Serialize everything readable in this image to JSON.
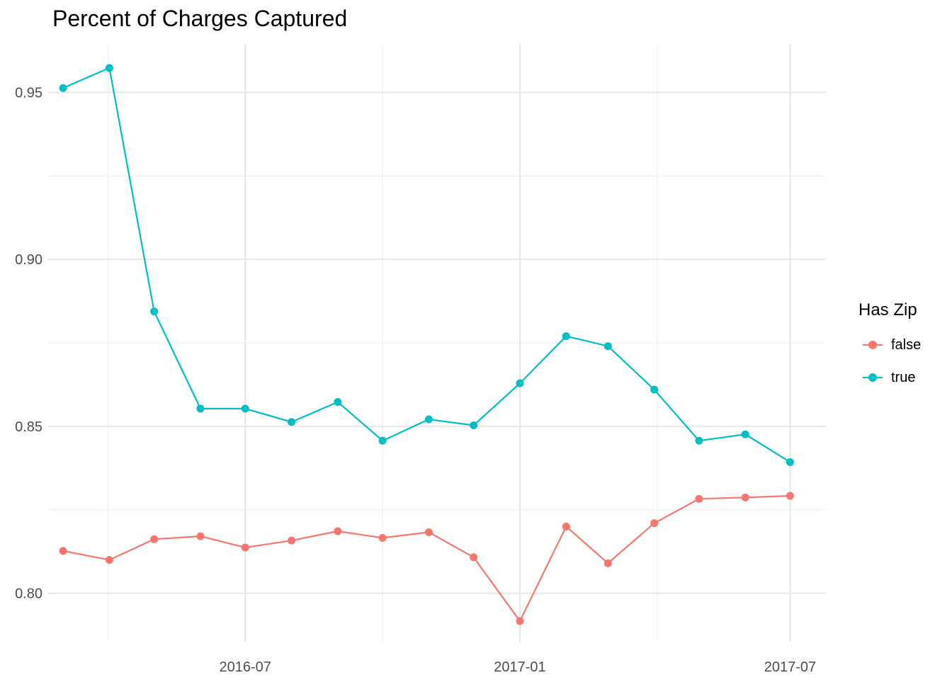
{
  "chart_data": {
    "type": "line",
    "title": "Percent of Charges Captured",
    "xlabel": "",
    "ylabel": "",
    "x": [
      "2016-03",
      "2016-04",
      "2016-05",
      "2016-06",
      "2016-07",
      "2016-08",
      "2016-09",
      "2016-10",
      "2016-11",
      "2016-12",
      "2017-01",
      "2017-02",
      "2017-03",
      "2017-04",
      "2017-05",
      "2017-06",
      "2017-07"
    ],
    "x_ticks": [
      "2016-07",
      "2017-01",
      "2017-07"
    ],
    "y_ticks": [
      "0.80",
      "0.85",
      "0.90",
      "0.95"
    ],
    "xlim": [
      "2016-02-20",
      "2017-07-25"
    ],
    "ylim": [
      0.7855,
      0.9645
    ],
    "grid": true,
    "legend": {
      "title": "Has Zip",
      "placement": "right"
    },
    "series": [
      {
        "name": "false",
        "color": "#F8766D",
        "values": [
          0.8127,
          0.81,
          0.8162,
          0.8171,
          0.8137,
          0.8158,
          0.8186,
          0.8166,
          0.8183,
          0.8108,
          0.7917,
          0.82,
          0.809,
          0.821,
          0.8283,
          0.8287,
          0.8292
        ]
      },
      {
        "name": "true",
        "color": "#00BFC4",
        "values": [
          0.9513,
          0.9573,
          0.8844,
          0.8553,
          0.8553,
          0.8513,
          0.8573,
          0.8457,
          0.8521,
          0.8503,
          0.8629,
          0.877,
          0.874,
          0.861,
          0.8457,
          0.8476,
          0.8393
        ]
      }
    ]
  }
}
